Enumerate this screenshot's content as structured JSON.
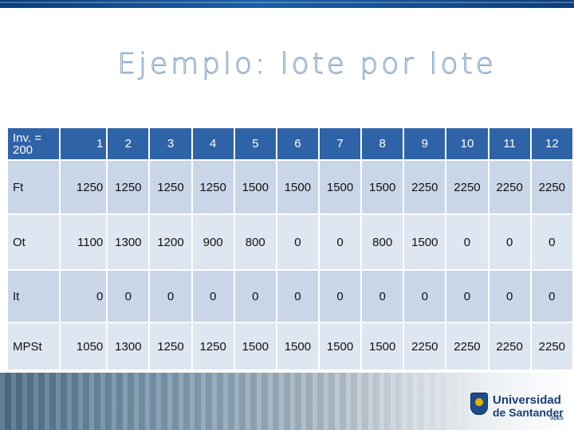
{
  "slide": {
    "title": "Ejemplo: lote por lote",
    "accent_color": "#2f63a8"
  },
  "table": {
    "header": {
      "label": "Inv. = 200",
      "periods": [
        "1",
        "2",
        "3",
        "4",
        "5",
        "6",
        "7",
        "8",
        "9",
        "10",
        "11",
        "12"
      ]
    },
    "rows": [
      {
        "label": "Ft",
        "values": [
          "1250",
          "1250",
          "1250",
          "1250",
          "1500",
          "1500",
          "1500",
          "1500",
          "2250",
          "2250",
          "2250",
          "2250"
        ]
      },
      {
        "label": "Ot",
        "values": [
          "1100",
          "1300",
          "1200",
          "900",
          "800",
          "0",
          "0",
          "800",
          "1500",
          "0",
          "0",
          "0"
        ]
      },
      {
        "label": "It",
        "values": [
          "0",
          "0",
          "0",
          "0",
          "0",
          "0",
          "0",
          "0",
          "0",
          "0",
          "0",
          "0"
        ]
      },
      {
        "label": "MPSt",
        "values": [
          "1050",
          "1300",
          "1250",
          "1250",
          "1500",
          "1500",
          "1500",
          "1500",
          "2250",
          "2250",
          "2250",
          "2250"
        ]
      }
    ]
  },
  "logo": {
    "line1": "Universidad",
    "line2": "de Santander",
    "line3": "UDES",
    "icon": "university-shield-icon"
  }
}
